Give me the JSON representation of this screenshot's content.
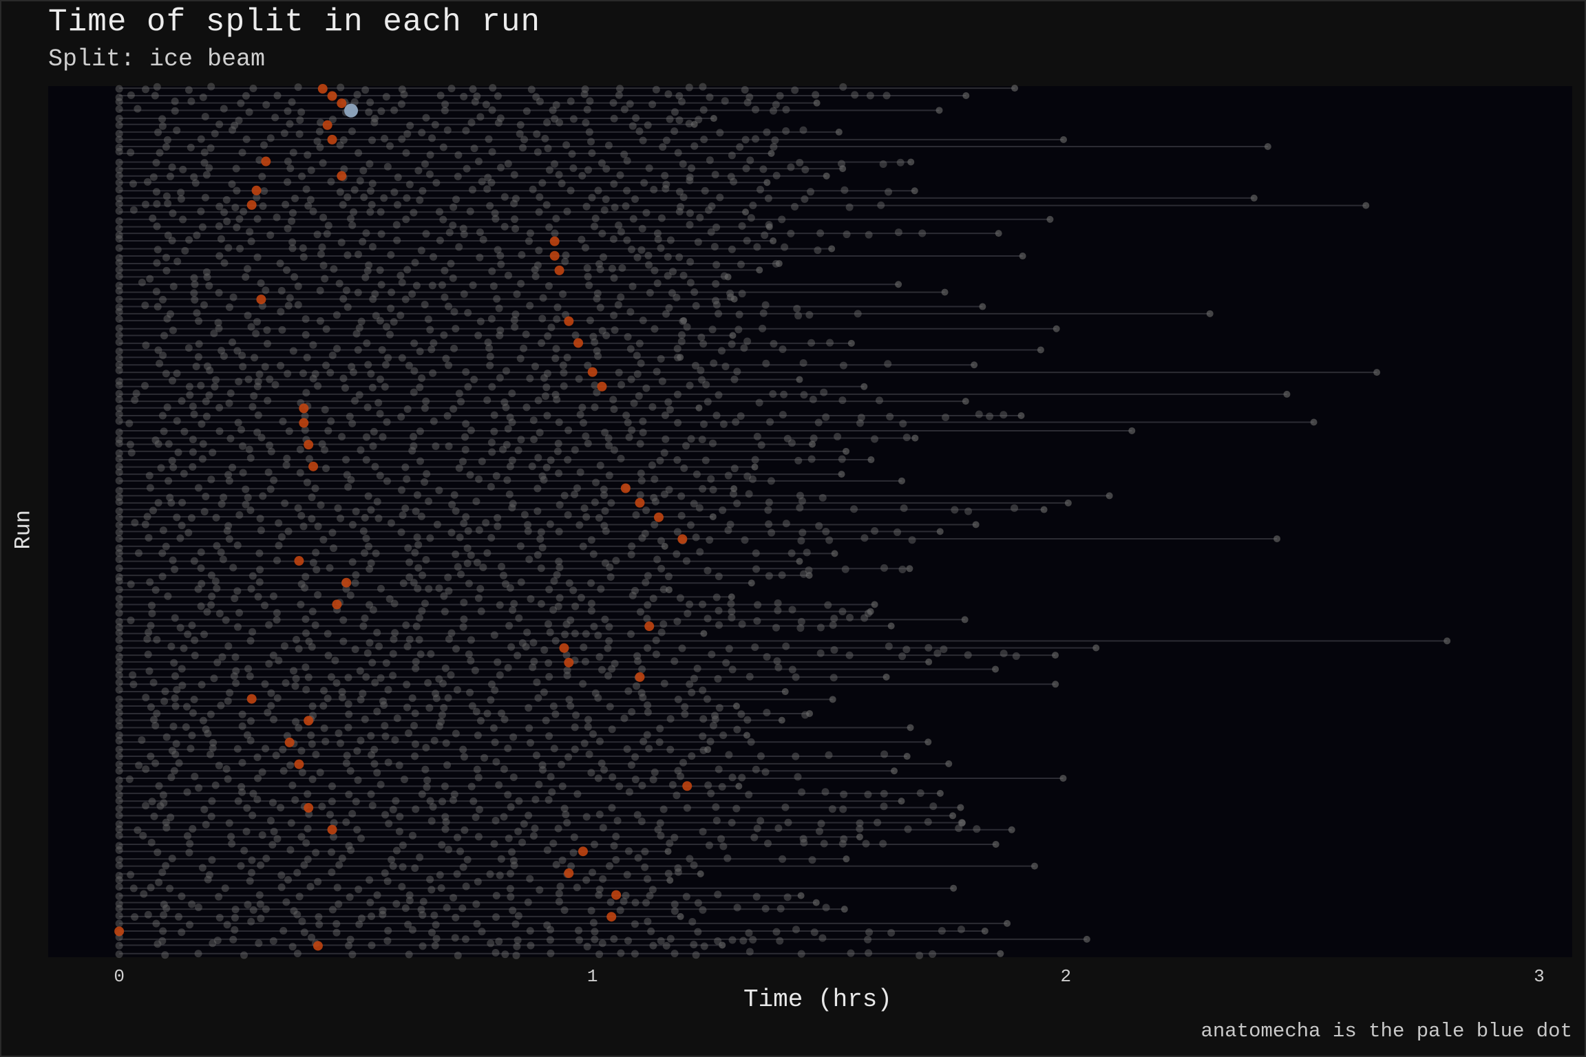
{
  "chart_data": {
    "type": "scatter",
    "title": "Time of split in each run",
    "subtitle": "Split: ice beam",
    "xlabel": "Time (hrs)",
    "ylabel": "Run",
    "caption": "anatomecha is the pale blue dot",
    "xlim": [
      -0.15,
      3.07
    ],
    "x_ticks": [
      "0",
      "1",
      "2",
      "3"
    ],
    "x_tick_values": [
      0,
      1,
      2,
      3
    ],
    "grid": false,
    "colors": {
      "background": "#0f0f0f",
      "panel": "#05050c",
      "run_line": "#3a3a42",
      "split_point": "#6e6e6e",
      "ice_beam_split": "#c0440f",
      "anatomecha": "#8aa0b8"
    },
    "series": [
      {
        "name": "ice beam",
        "points": [
          {
            "run": 1,
            "x": 0.43
          },
          {
            "run": 2,
            "x": 0.45
          },
          {
            "run": 3,
            "x": 0.47
          },
          {
            "run": 6,
            "x": 0.44
          },
          {
            "run": 8,
            "x": 0.45
          },
          {
            "run": 11,
            "x": 0.31
          },
          {
            "run": 13,
            "x": 0.47
          },
          {
            "run": 15,
            "x": 0.29
          },
          {
            "run": 17,
            "x": 0.28
          },
          {
            "run": 22,
            "x": 0.92
          },
          {
            "run": 24,
            "x": 0.92
          },
          {
            "run": 26,
            "x": 0.93
          },
          {
            "run": 30,
            "x": 0.3
          },
          {
            "run": 33,
            "x": 0.95
          },
          {
            "run": 36,
            "x": 0.97
          },
          {
            "run": 40,
            "x": 1.0
          },
          {
            "run": 42,
            "x": 1.02
          },
          {
            "run": 45,
            "x": 0.39
          },
          {
            "run": 47,
            "x": 0.39
          },
          {
            "run": 50,
            "x": 0.4
          },
          {
            "run": 53,
            "x": 0.41
          },
          {
            "run": 56,
            "x": 1.07
          },
          {
            "run": 58,
            "x": 1.1
          },
          {
            "run": 60,
            "x": 1.14
          },
          {
            "run": 63,
            "x": 1.19
          },
          {
            "run": 66,
            "x": 0.38
          },
          {
            "run": 69,
            "x": 0.48
          },
          {
            "run": 72,
            "x": 0.46
          },
          {
            "run": 75,
            "x": 1.12
          },
          {
            "run": 78,
            "x": 0.94
          },
          {
            "run": 80,
            "x": 0.95
          },
          {
            "run": 82,
            "x": 1.1
          },
          {
            "run": 85,
            "x": 0.28
          },
          {
            "run": 88,
            "x": 0.4
          },
          {
            "run": 91,
            "x": 0.36
          },
          {
            "run": 94,
            "x": 0.38
          },
          {
            "run": 97,
            "x": 1.2
          },
          {
            "run": 100,
            "x": 0.4
          },
          {
            "run": 103,
            "x": 0.45
          },
          {
            "run": 106,
            "x": 0.98
          },
          {
            "run": 109,
            "x": 0.95
          },
          {
            "run": 112,
            "x": 1.05
          },
          {
            "run": 115,
            "x": 1.04
          },
          {
            "run": 117,
            "x": 0.0
          },
          {
            "run": 119,
            "x": 0.42
          }
        ]
      },
      {
        "name": "anatomecha",
        "points": [
          {
            "run": 4,
            "x": 0.49
          }
        ]
      }
    ]
  },
  "annotations": {
    "highlight": "anatomecha"
  }
}
